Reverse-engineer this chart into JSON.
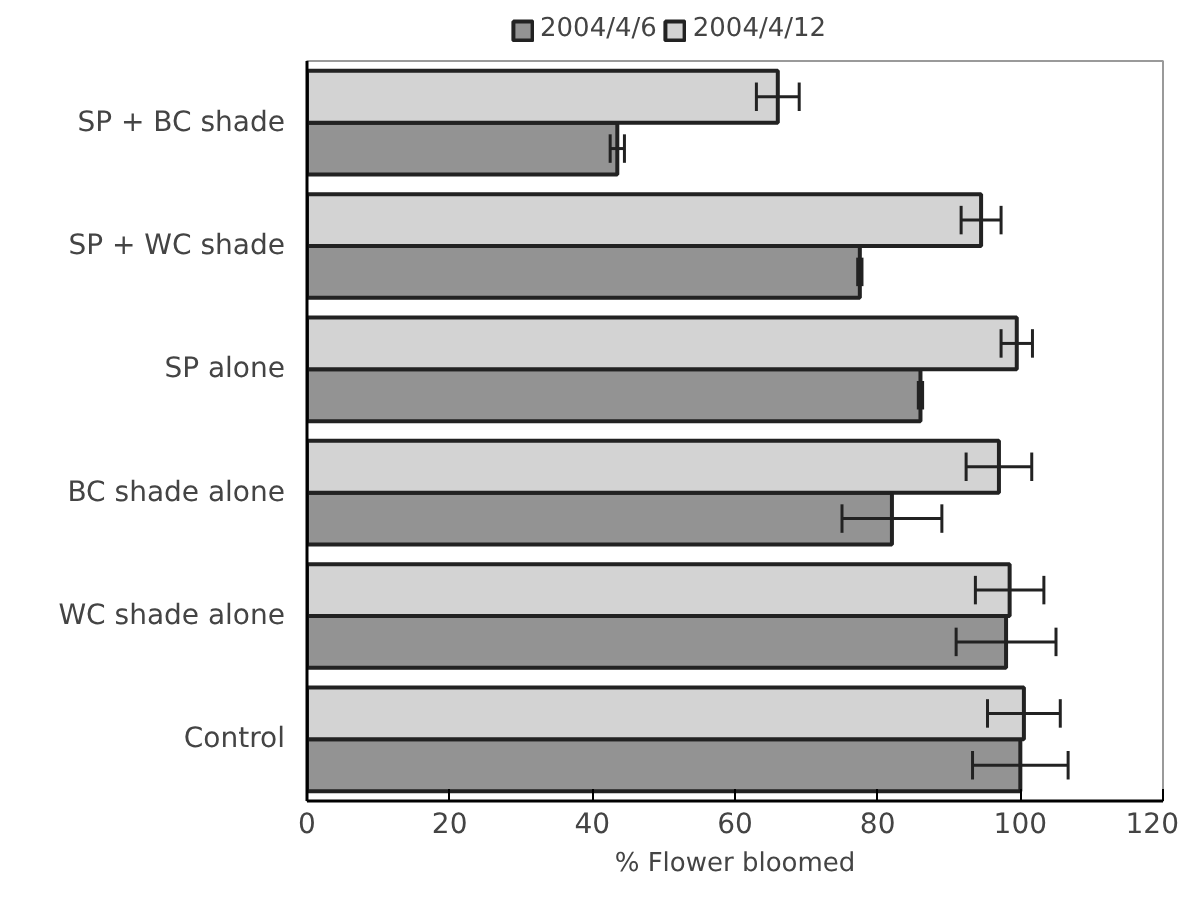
{
  "chart_data": {
    "type": "bar",
    "orientation": "horizontal",
    "xlabel": "% Flower bloomed",
    "categories": [
      "SP + BC shade",
      "SP + WC shade",
      "SP alone",
      "BC shade alone",
      "WC shade alone",
      "Control"
    ],
    "series": [
      {
        "name": "2004/4/6",
        "color": "#939393",
        "values": [
          43.5,
          77.5,
          86,
          82,
          98,
          100
        ],
        "errors": [
          1,
          0.3,
          0.3,
          7,
          7,
          6.7
        ]
      },
      {
        "name": "2004/4/12",
        "color": "#d3d3d3",
        "values": [
          66,
          94.5,
          99.5,
          97,
          98.5,
          100.5
        ],
        "errors": [
          3,
          2.8,
          2.2,
          4.6,
          4.8,
          5.1
        ]
      }
    ],
    "xlim": [
      0,
      120
    ],
    "xticks": [
      0,
      20,
      40,
      60,
      80,
      100,
      120
    ],
    "grid": false,
    "legend": "top"
  }
}
